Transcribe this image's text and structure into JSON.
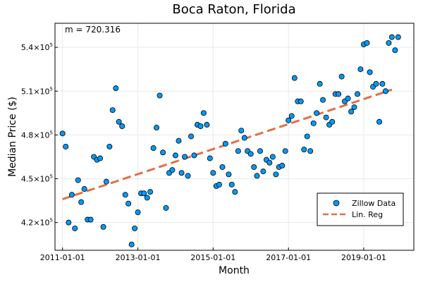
{
  "chart_data": {
    "type": "scatter",
    "title": "Boca Raton, Florida",
    "xlabel": "Month",
    "ylabel": "Median Price ($)",
    "annotation": "m = 720.316",
    "x_ticks": [
      "2011-01-01",
      "2013-01-01",
      "2015-01-01",
      "2017-01-01",
      "2019-01-01"
    ],
    "y_ticks": [
      {
        "value": 420000,
        "mantissa": "4.2",
        "base": "×10",
        "exp": "5"
      },
      {
        "value": 450000,
        "mantissa": "4.5",
        "base": "×10",
        "exp": "5"
      },
      {
        "value": 480000,
        "mantissa": "4.8",
        "base": "×10",
        "exp": "5"
      },
      {
        "value": 510000,
        "mantissa": "5.1",
        "base": "×10",
        "exp": "5"
      },
      {
        "value": 540000,
        "mantissa": "5.4",
        "base": "×10",
        "exp": "5"
      }
    ],
    "xlim": [
      "2010-10-20",
      "2020-05-01"
    ],
    "ylim": [
      401000,
      556500
    ],
    "grid": true,
    "legend_position": "bottom-right",
    "series": [
      {
        "name": "Zillow Data",
        "kind": "scatter",
        "color": "#009AF9",
        "x": [
          "2011-01-01",
          "2011-02-01",
          "2011-03-01",
          "2011-04-01",
          "2011-05-01",
          "2011-06-01",
          "2011-07-01",
          "2011-08-01",
          "2011-09-01",
          "2011-10-01",
          "2011-11-01",
          "2011-12-01",
          "2012-01-01",
          "2012-02-01",
          "2012-03-01",
          "2012-04-01",
          "2012-05-01",
          "2012-06-01",
          "2012-07-01",
          "2012-08-01",
          "2012-09-01",
          "2012-10-01",
          "2012-11-01",
          "2012-12-01",
          "2013-01-01",
          "2013-02-01",
          "2013-03-01",
          "2013-04-01",
          "2013-05-01",
          "2013-06-01",
          "2013-07-01",
          "2013-08-01",
          "2013-09-01",
          "2013-10-01",
          "2013-11-01",
          "2013-12-01",
          "2014-01-01",
          "2014-02-01",
          "2014-03-01",
          "2014-04-01",
          "2014-05-01",
          "2014-06-01",
          "2014-07-01",
          "2014-08-01",
          "2014-09-01",
          "2014-10-01",
          "2014-11-01",
          "2014-12-01",
          "2015-01-01",
          "2015-02-01",
          "2015-03-01",
          "2015-04-01",
          "2015-05-01",
          "2015-06-01",
          "2015-07-01",
          "2015-08-01",
          "2015-09-01",
          "2015-10-01",
          "2015-11-01",
          "2015-12-01",
          "2016-01-01",
          "2016-02-01",
          "2016-03-01",
          "2016-04-01",
          "2016-05-01",
          "2016-06-01",
          "2016-07-01",
          "2016-08-01",
          "2016-09-01",
          "2016-10-01",
          "2016-11-01",
          "2016-12-01",
          "2017-01-01",
          "2017-02-01",
          "2017-03-01",
          "2017-04-01",
          "2017-05-01",
          "2017-06-01",
          "2017-07-01",
          "2017-08-01",
          "2017-09-01",
          "2017-10-01",
          "2017-11-01",
          "2017-12-01",
          "2018-01-01",
          "2018-02-01",
          "2018-03-01",
          "2018-04-01",
          "2018-05-01",
          "2018-06-01",
          "2018-07-01",
          "2018-08-01",
          "2018-09-01",
          "2018-10-01",
          "2018-11-01",
          "2018-12-01",
          "2019-01-01",
          "2019-02-01",
          "2019-03-01",
          "2019-04-01",
          "2019-05-01",
          "2019-06-01",
          "2019-07-01",
          "2019-08-01",
          "2019-09-01",
          "2019-10-01",
          "2019-11-01",
          "2019-12-01"
        ],
        "y": [
          481000,
          472000,
          420000,
          439000,
          416000,
          449000,
          434000,
          443000,
          422000,
          422000,
          465000,
          463000,
          464000,
          417000,
          448000,
          472000,
          497000,
          512000,
          489000,
          486000,
          439000,
          433000,
          405000,
          416000,
          427000,
          440000,
          440000,
          437000,
          441000,
          471000,
          485000,
          507000,
          468000,
          430000,
          454000,
          456000,
          466000,
          476000,
          454000,
          465000,
          452000,
          479000,
          466000,
          487000,
          486000,
          495000,
          487000,
          464000,
          454000,
          445000,
          446000,
          458000,
          474000,
          453000,
          446000,
          441000,
          469000,
          483000,
          478000,
          469000,
          467000,
          458000,
          452000,
          469000,
          455000,
          463000,
          461000,
          465000,
          453000,
          458000,
          459000,
          469000,
          490000,
          493000,
          519000,
          503000,
          503000,
          470000,
          479000,
          469000,
          488000,
          495000,
          515000,
          504000,
          492000,
          487000,
          489000,
          508000,
          508000,
          520000,
          503000,
          505000,
          496000,
          499000,
          508000,
          525000,
          542000,
          543000,
          523000,
          513000,
          515000,
          489000,
          515000,
          510000,
          543000,
          547000,
          538000,
          547000
        ]
      },
      {
        "name": "Lin. Reg",
        "kind": "line",
        "color": "#E26F46",
        "x": [
          "2011-01-01",
          "2019-10-01"
        ],
        "y": [
          436000,
          511000
        ]
      }
    ]
  }
}
